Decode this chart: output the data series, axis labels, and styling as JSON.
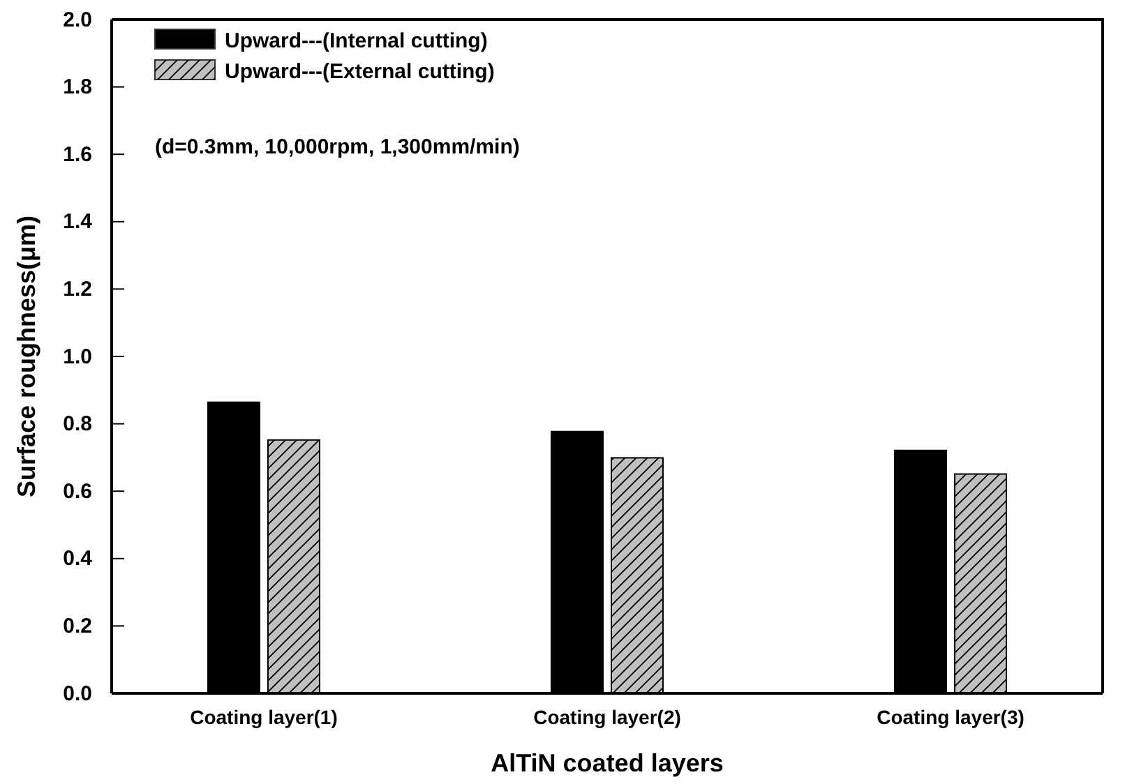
{
  "chart_data": {
    "type": "bar",
    "xlabel": "AlTiN coated layers",
    "ylabel": "Surface roughness(μm)",
    "categories": [
      "Coating layer(1)",
      "Coating layer(2)",
      "Coating layer(3)"
    ],
    "series": [
      {
        "name": "Upward---(Internal cutting)",
        "color": "#000000",
        "values": [
          0.864,
          0.777,
          0.721
        ]
      },
      {
        "name": "Upward---(External cutting)",
        "color": "#c0c0c0",
        "values": [
          0.752,
          0.699,
          0.651
        ]
      }
    ],
    "ylim": [
      0,
      2
    ],
    "yticks": [
      {
        "value": 0,
        "label": "0.0"
      },
      0.2,
      0.4,
      0.6,
      0.8,
      {
        "value": 1,
        "label": "1.0"
      },
      1.2,
      1.4,
      1.6,
      1.8,
      {
        "value": 2,
        "label": "2.0"
      }
    ],
    "legend": "top left",
    "grid": false,
    "annotations": [
      "(d=0.3mm, 10,000rpm, 1,300mm/min)"
    ]
  }
}
